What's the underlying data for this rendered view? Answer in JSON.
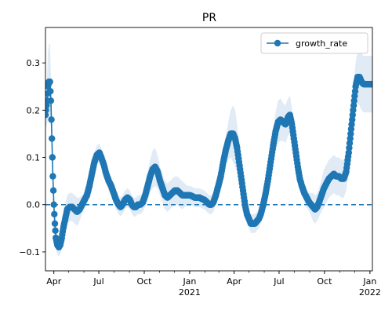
{
  "chart_data": {
    "type": "line",
    "title": "PR",
    "xlabel": "",
    "ylabel": "",
    "x_range": [
      "2020-03-15",
      "2022-01-06"
    ],
    "ylim": [
      -0.14,
      0.375
    ],
    "y_ticks": [
      -0.1,
      0.0,
      0.1,
      0.2,
      0.3
    ],
    "y_tick_labels": [
      "−0.1",
      "0.0",
      "0.1",
      "0.2",
      "0.3"
    ],
    "x_major_ticks": [
      {
        "date": "2020-04-01",
        "label": "Apr",
        "sublabel": ""
      },
      {
        "date": "2020-07-01",
        "label": "Jul",
        "sublabel": ""
      },
      {
        "date": "2020-10-01",
        "label": "Oct",
        "sublabel": ""
      },
      {
        "date": "2021-01-01",
        "label": "Jan",
        "sublabel": "2021"
      },
      {
        "date": "2021-04-01",
        "label": "Apr",
        "sublabel": ""
      },
      {
        "date": "2021-07-01",
        "label": "Jul",
        "sublabel": ""
      },
      {
        "date": "2021-10-01",
        "label": "Oct",
        "sublabel": ""
      },
      {
        "date": "2022-01-01",
        "label": "Jan",
        "sublabel": "2022"
      }
    ],
    "reference_line": {
      "y": 0.0,
      "style": "dashed"
    },
    "legend": {
      "position": "top-right",
      "entries": [
        "growth_rate"
      ]
    },
    "grid": false,
    "colors": {
      "line": "#1f77b4",
      "band": "#c6dbef"
    },
    "series": [
      {
        "name": "growth_rate",
        "points": [
          [
            "2020-03-15",
            0.19
          ],
          [
            "2020-03-18",
            0.22
          ],
          [
            "2020-03-20",
            0.25
          ],
          [
            "2020-03-22",
            0.26
          ],
          [
            "2020-03-24",
            0.26
          ],
          [
            "2020-03-26",
            0.22
          ],
          [
            "2020-03-28",
            0.14
          ],
          [
            "2020-03-30",
            0.06
          ],
          [
            "2020-04-01",
            0.0
          ],
          [
            "2020-04-03",
            -0.04
          ],
          [
            "2020-04-05",
            -0.07
          ],
          [
            "2020-04-08",
            -0.085
          ],
          [
            "2020-04-11",
            -0.09
          ],
          [
            "2020-04-14",
            -0.085
          ],
          [
            "2020-04-17",
            -0.07
          ],
          [
            "2020-04-20",
            -0.05
          ],
          [
            "2020-04-24",
            -0.03
          ],
          [
            "2020-04-28",
            -0.01
          ],
          [
            "2020-05-03",
            -0.005
          ],
          [
            "2020-05-08",
            -0.005
          ],
          [
            "2020-05-13",
            -0.01
          ],
          [
            "2020-05-18",
            -0.015
          ],
          [
            "2020-05-23",
            -0.01
          ],
          [
            "2020-05-28",
            0.0
          ],
          [
            "2020-06-02",
            0.01
          ],
          [
            "2020-06-07",
            0.02
          ],
          [
            "2020-06-12",
            0.04
          ],
          [
            "2020-06-17",
            0.065
          ],
          [
            "2020-06-22",
            0.09
          ],
          [
            "2020-06-27",
            0.105
          ],
          [
            "2020-07-02",
            0.11
          ],
          [
            "2020-07-06",
            0.1
          ],
          [
            "2020-07-11",
            0.085
          ],
          [
            "2020-07-16",
            0.065
          ],
          [
            "2020-07-21",
            0.05
          ],
          [
            "2020-07-26",
            0.04
          ],
          [
            "2020-07-31",
            0.025
          ],
          [
            "2020-08-05",
            0.01
          ],
          [
            "2020-08-10",
            0.0
          ],
          [
            "2020-08-14",
            -0.005
          ],
          [
            "2020-08-18",
            0.0
          ],
          [
            "2020-08-23",
            0.01
          ],
          [
            "2020-08-28",
            0.015
          ],
          [
            "2020-09-02",
            0.01
          ],
          [
            "2020-09-06",
            0.0
          ],
          [
            "2020-09-10",
            -0.005
          ],
          [
            "2020-09-14",
            -0.005
          ],
          [
            "2020-09-18",
            0.0
          ],
          [
            "2020-09-23",
            0.0
          ],
          [
            "2020-09-28",
            0.005
          ],
          [
            "2020-10-03",
            0.02
          ],
          [
            "2020-10-08",
            0.04
          ],
          [
            "2020-10-13",
            0.06
          ],
          [
            "2020-10-18",
            0.075
          ],
          [
            "2020-10-23",
            0.08
          ],
          [
            "2020-10-28",
            0.07
          ],
          [
            "2020-11-02",
            0.05
          ],
          [
            "2020-11-07",
            0.035
          ],
          [
            "2020-11-12",
            0.02
          ],
          [
            "2020-11-17",
            0.015
          ],
          [
            "2020-11-22",
            0.02
          ],
          [
            "2020-11-27",
            0.025
          ],
          [
            "2020-12-02",
            0.03
          ],
          [
            "2020-12-07",
            0.03
          ],
          [
            "2020-12-12",
            0.025
          ],
          [
            "2020-12-17",
            0.02
          ],
          [
            "2020-12-22",
            0.02
          ],
          [
            "2020-12-27",
            0.02
          ],
          [
            "2021-01-01",
            0.02
          ],
          [
            "2021-01-06",
            0.018
          ],
          [
            "2021-01-11",
            0.015
          ],
          [
            "2021-01-16",
            0.015
          ],
          [
            "2021-01-21",
            0.015
          ],
          [
            "2021-01-26",
            0.012
          ],
          [
            "2021-01-31",
            0.01
          ],
          [
            "2021-02-05",
            0.005
          ],
          [
            "2021-02-10",
            0.0
          ],
          [
            "2021-02-14",
            0.0
          ],
          [
            "2021-02-18",
            0.005
          ],
          [
            "2021-02-23",
            0.02
          ],
          [
            "2021-02-28",
            0.04
          ],
          [
            "2021-03-05",
            0.06
          ],
          [
            "2021-03-10",
            0.09
          ],
          [
            "2021-03-15",
            0.115
          ],
          [
            "2021-03-20",
            0.135
          ],
          [
            "2021-03-25",
            0.15
          ],
          [
            "2021-03-30",
            0.15
          ],
          [
            "2021-04-03",
            0.14
          ],
          [
            "2021-04-07",
            0.12
          ],
          [
            "2021-04-11",
            0.09
          ],
          [
            "2021-04-15",
            0.06
          ],
          [
            "2021-04-19",
            0.03
          ],
          [
            "2021-04-23",
            0.0
          ],
          [
            "2021-04-27",
            -0.02
          ],
          [
            "2021-05-01",
            -0.03
          ],
          [
            "2021-05-05",
            -0.04
          ],
          [
            "2021-05-09",
            -0.04
          ],
          [
            "2021-05-13",
            -0.04
          ],
          [
            "2021-05-17",
            -0.035
          ],
          [
            "2021-05-21",
            -0.03
          ],
          [
            "2021-05-25",
            -0.02
          ],
          [
            "2021-05-30",
            0.0
          ],
          [
            "2021-06-04",
            0.025
          ],
          [
            "2021-06-09",
            0.055
          ],
          [
            "2021-06-14",
            0.09
          ],
          [
            "2021-06-19",
            0.125
          ],
          [
            "2021-06-24",
            0.155
          ],
          [
            "2021-06-29",
            0.175
          ],
          [
            "2021-07-04",
            0.18
          ],
          [
            "2021-07-09",
            0.175
          ],
          [
            "2021-07-14",
            0.17
          ],
          [
            "2021-07-19",
            0.185
          ],
          [
            "2021-07-23",
            0.19
          ],
          [
            "2021-07-27",
            0.17
          ],
          [
            "2021-07-31",
            0.14
          ],
          [
            "2021-08-04",
            0.11
          ],
          [
            "2021-08-08",
            0.08
          ],
          [
            "2021-08-12",
            0.055
          ],
          [
            "2021-08-16",
            0.04
          ],
          [
            "2021-08-21",
            0.025
          ],
          [
            "2021-08-26",
            0.015
          ],
          [
            "2021-08-31",
            0.005
          ],
          [
            "2021-09-04",
            0.0
          ],
          [
            "2021-09-08",
            -0.005
          ],
          [
            "2021-09-12",
            -0.01
          ],
          [
            "2021-09-16",
            -0.005
          ],
          [
            "2021-09-20",
            0.005
          ],
          [
            "2021-09-25",
            0.02
          ],
          [
            "2021-09-30",
            0.035
          ],
          [
            "2021-10-05",
            0.045
          ],
          [
            "2021-10-10",
            0.055
          ],
          [
            "2021-10-15",
            0.06
          ],
          [
            "2021-10-20",
            0.065
          ],
          [
            "2021-10-25",
            0.06
          ],
          [
            "2021-10-30",
            0.06
          ],
          [
            "2021-11-04",
            0.055
          ],
          [
            "2021-11-09",
            0.055
          ],
          [
            "2021-11-14",
            0.07
          ],
          [
            "2021-11-19",
            0.11
          ],
          [
            "2021-11-24",
            0.16
          ],
          [
            "2021-11-29",
            0.21
          ],
          [
            "2021-12-03",
            0.25
          ],
          [
            "2021-12-07",
            0.27
          ],
          [
            "2021-12-11",
            0.27
          ],
          [
            "2021-12-15",
            0.26
          ],
          [
            "2021-12-19",
            0.255
          ],
          [
            "2021-12-23",
            0.255
          ],
          [
            "2021-12-27",
            0.255
          ],
          [
            "2021-12-31",
            0.255
          ],
          [
            "2022-01-04",
            0.255
          ],
          [
            "2022-01-06",
            0.255
          ]
        ],
        "band_width": [
          0.03,
          0.05,
          0.07,
          0.08,
          0.08,
          0.06,
          0.04,
          0.03,
          0.02,
          0.02,
          0.02,
          0.02,
          0.02,
          0.02,
          0.025,
          0.03,
          0.03,
          0.03,
          0.03,
          0.03,
          0.03,
          0.03,
          0.025,
          0.02,
          0.02,
          0.02,
          0.02,
          0.02,
          0.02,
          0.02,
          0.02,
          0.02,
          0.02,
          0.02,
          0.02,
          0.02,
          0.02,
          0.02,
          0.02,
          0.02,
          0.02,
          0.02,
          0.02,
          0.02,
          0.02,
          0.02,
          0.02,
          0.02,
          0.02,
          0.02,
          0.025,
          0.03,
          0.035,
          0.04,
          0.04,
          0.035,
          0.03,
          0.03,
          0.03,
          0.03,
          0.03,
          0.03,
          0.03,
          0.03,
          0.03,
          0.03,
          0.025,
          0.02,
          0.02,
          0.02,
          0.02,
          0.02,
          0.02,
          0.02,
          0.02,
          0.02,
          0.02,
          0.02,
          0.02,
          0.02,
          0.02,
          0.02,
          0.02,
          0.03,
          0.04,
          0.05,
          0.06,
          0.06,
          0.05,
          0.04,
          0.03,
          0.025,
          0.02,
          0.02,
          0.02,
          0.02,
          0.02,
          0.02,
          0.02,
          0.02,
          0.02,
          0.02,
          0.02,
          0.02,
          0.03,
          0.035,
          0.04,
          0.045,
          0.045,
          0.04,
          0.04,
          0.04,
          0.04,
          0.035,
          0.03,
          0.025,
          0.02,
          0.02,
          0.02,
          0.02,
          0.02,
          0.02,
          0.025,
          0.03,
          0.03,
          0.03,
          0.03,
          0.035,
          0.04,
          0.04,
          0.04,
          0.04,
          0.04,
          0.04,
          0.04,
          0.04,
          0.04,
          0.04,
          0.045,
          0.05,
          0.05,
          0.05,
          0.055,
          0.06,
          0.06,
          0.06,
          0.06,
          0.06,
          0.06,
          0.06,
          0.06,
          0.06,
          0.06,
          0.06,
          0.06
        ]
      }
    ]
  }
}
